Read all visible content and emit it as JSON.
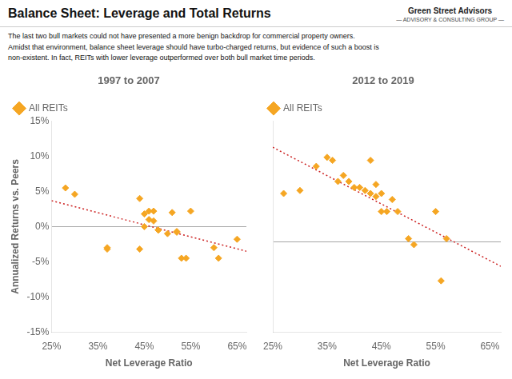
{
  "title": "Balance Sheet: Leverage and Total Returns",
  "subtitle": "The last two bull markets could not have presented a more benign backdrop for commercial property owners.\nAmidst that environment, balance sheet leverage should have turbo-charged returns, but evidence of such a boost is\nnon-existent.  In fact, REITs with lower leverage outperformed over both bull market time periods.",
  "annotations": [
    "Green Street Advisors",
    "— ADVISORY & CONSULTING GROUP —"
  ],
  "chart_data": [
    {
      "type": "scatter",
      "title": "1997 to 2007",
      "xlabel": "Net Leverage Ratio",
      "ylabel": "Annualized Returns vs. Peers",
      "legend": "upper left",
      "grid": false,
      "xlim": [
        25,
        67
      ],
      "xticks": [
        {
          "value": 25,
          "label": "25%"
        },
        {
          "value": 35,
          "label": "35%"
        },
        {
          "value": 45,
          "label": "45%"
        },
        {
          "value": 55,
          "label": "55%"
        },
        {
          "value": 65,
          "label": "65%"
        }
      ],
      "ylim": [
        -15,
        15
      ],
      "yticks": [
        {
          "value": -15,
          "label": "-15%"
        },
        {
          "value": -10,
          "label": "-10%"
        },
        {
          "value": -5,
          "label": "-5%"
        },
        {
          "value": 0,
          "label": "0%"
        },
        {
          "value": 5,
          "label": "5%"
        },
        {
          "value": 10,
          "label": "10%"
        },
        {
          "value": 15,
          "label": "15%"
        }
      ],
      "series": [
        {
          "name": "All REITs",
          "color": "#f5a623",
          "marker": "diamond",
          "x": [
            28,
            30,
            37,
            37,
            44,
            44,
            45,
            45,
            46,
            46,
            47,
            47,
            48,
            48,
            50,
            51,
            52,
            52,
            53,
            54,
            55,
            60,
            61,
            65
          ],
          "values": [
            5.5,
            4.6,
            -3.2,
            -3.0,
            4.0,
            -3.2,
            0.0,
            1.8,
            2.2,
            1.0,
            0.8,
            2.2,
            -0.5,
            -0.5,
            -1.0,
            2.0,
            -0.8,
            -0.7,
            -4.5,
            -4.5,
            2.2,
            -3.0,
            -4.5,
            -1.8
          ]
        },
        {
          "type": "line",
          "color": "#cc2222",
          "line_style": "dotted",
          "x": [
            25,
            67
          ],
          "values": [
            3.6877,
            -3.5105
          ]
        }
      ]
    },
    {
      "type": "scatter",
      "title": "2012 to 2019",
      "xlabel": "Net Leverage Ratio",
      "legend": "upper left",
      "grid": false,
      "tick_labels": "x",
      "xlim": [
        25,
        67
      ],
      "xticks": [
        {
          "value": 25,
          "label": "25%"
        },
        {
          "value": 35,
          "label": "35%"
        },
        {
          "value": 45,
          "label": "45%"
        },
        {
          "value": 55,
          "label": "55%"
        },
        {
          "value": 65,
          "label": "65%"
        }
      ],
      "ylim": [
        -15,
        20
      ],
      "yticks": [
        -15,
        -10,
        -5,
        0,
        5,
        10,
        15,
        20
      ],
      "series": [
        {
          "name": "All REITs",
          "color": "#f5a623",
          "marker": "diamond",
          "x": [
            27,
            30,
            33,
            35,
            36,
            37,
            38,
            39,
            40,
            41,
            42,
            43,
            43,
            44,
            44,
            45,
            45,
            46,
            47,
            48,
            50,
            51,
            55,
            56,
            57
          ],
          "values": [
            8.0,
            8.5,
            12.5,
            14.0,
            13.5,
            10.0,
            11.0,
            10.0,
            9.0,
            9.0,
            8.5,
            8.0,
            13.5,
            7.5,
            9.5,
            8.0,
            5.0,
            5.0,
            7.0,
            5.0,
            0.5,
            -0.5,
            5.0,
            -6.5,
            0.5
          ]
        },
        {
          "type": "line",
          "color": "#cc2222",
          "line_style": "dotted",
          "x": [
            25,
            67
          ],
          "values": [
            15.6727,
            -4.0887
          ]
        }
      ]
    }
  ]
}
